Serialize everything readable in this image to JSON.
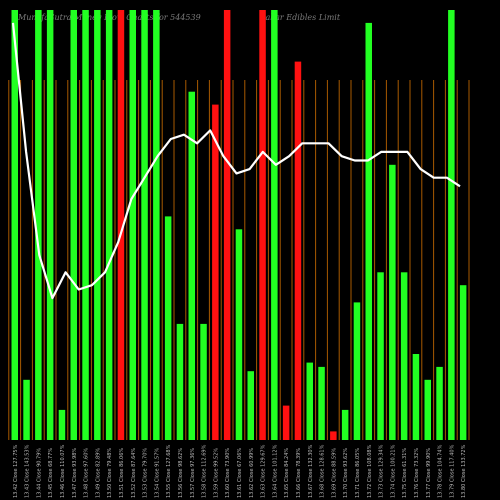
{
  "header": {
    "left": "MunafaSutra Money Flow Charts for 544539",
    "right": "Sakar Edibles Limit"
  },
  "chart_data": {
    "type": "bar",
    "bars": [
      {
        "v": 100,
        "c": "green"
      },
      {
        "v": 14,
        "c": "green"
      },
      {
        "v": 100,
        "c": "green"
      },
      {
        "v": 100,
        "c": "green"
      },
      {
        "v": 7,
        "c": "green"
      },
      {
        "v": 100,
        "c": "green"
      },
      {
        "v": 100,
        "c": "green"
      },
      {
        "v": 100,
        "c": "green"
      },
      {
        "v": 100,
        "c": "green"
      },
      {
        "v": 100,
        "c": "red"
      },
      {
        "v": 100,
        "c": "green"
      },
      {
        "v": 100,
        "c": "green"
      },
      {
        "v": 100,
        "c": "green"
      },
      {
        "v": 52,
        "c": "green"
      },
      {
        "v": 27,
        "c": "green"
      },
      {
        "v": 81,
        "c": "green"
      },
      {
        "v": 27,
        "c": "green"
      },
      {
        "v": 78,
        "c": "red"
      },
      {
        "v": 100,
        "c": "red"
      },
      {
        "v": 49,
        "c": "green"
      },
      {
        "v": 16,
        "c": "green"
      },
      {
        "v": 100,
        "c": "red"
      },
      {
        "v": 100,
        "c": "green"
      },
      {
        "v": 8,
        "c": "red"
      },
      {
        "v": 88,
        "c": "red"
      },
      {
        "v": 18,
        "c": "green"
      },
      {
        "v": 17,
        "c": "green"
      },
      {
        "v": 2,
        "c": "red"
      },
      {
        "v": 7,
        "c": "green"
      },
      {
        "v": 32,
        "c": "green"
      },
      {
        "v": 97,
        "c": "green"
      },
      {
        "v": 39,
        "c": "green"
      },
      {
        "v": 64,
        "c": "green"
      },
      {
        "v": 39,
        "c": "green"
      },
      {
        "v": 20,
        "c": "green"
      },
      {
        "v": 14,
        "c": "green"
      },
      {
        "v": 17,
        "c": "green"
      },
      {
        "v": 100,
        "c": "green"
      },
      {
        "v": 36,
        "c": "green"
      }
    ],
    "line": [
      97,
      67,
      43,
      33,
      39,
      35,
      36,
      39,
      46,
      56,
      61,
      66,
      70,
      71,
      69,
      72,
      66,
      62,
      63,
      67,
      64,
      66,
      69,
      69,
      69,
      66,
      65,
      65,
      67,
      67,
      67,
      63,
      61,
      61,
      59
    ],
    "xlabels": [
      "13.42 Close 127.75%",
      "13.43 Close 143.53%",
      "13.44 Close 90.79%",
      "13.45 Close 68.77%",
      "13.46 Close 110.07%",
      "13.47 Close 93.98%",
      "13.48 Close 97.60%",
      "13.49 Close 82.89%",
      "13.50 Close 79.48%",
      "13.51 Close 86.06%",
      "13.52 Close 87.64%",
      "13.53 Close 79.70%",
      "13.54 Close 91.57%",
      "13.55 Close 127.68%",
      "13.56 Close 98.62%",
      "13.57 Close 97.36%",
      "13.58 Close 112.69%",
      "13.59 Close 99.52%",
      "13.60 Close 73.90%",
      "13.61 Close 67.06%",
      "13.62 Close 60.99%",
      "13.63 Close 129.67%",
      "13.64 Close 101.12%",
      "13.65 Close 84.24%",
      "13.66 Close 78.39%",
      "13.67 Close 132.30%",
      "13.68 Close 128.61%",
      "13.69 Close 88.59%",
      "13.70 Close 93.62%",
      "13.71 Close 86.05%",
      "13.72 Close 108.08%",
      "13.73 Close 129.34%",
      "13.74 Close 100.21%",
      "13.75 Close 61.31%",
      "13.76 Close 73.32%",
      "13.77 Close 99.90%",
      "13.78 Close 104.74%",
      "13.79 Close 117.40%",
      "13.80 Close 133.72%"
    ],
    "colors": {
      "green": "#22ff22",
      "red": "#ff1111",
      "grid": "#a85a00",
      "line": "#ffffff",
      "label": "#bbbbbb"
    }
  }
}
